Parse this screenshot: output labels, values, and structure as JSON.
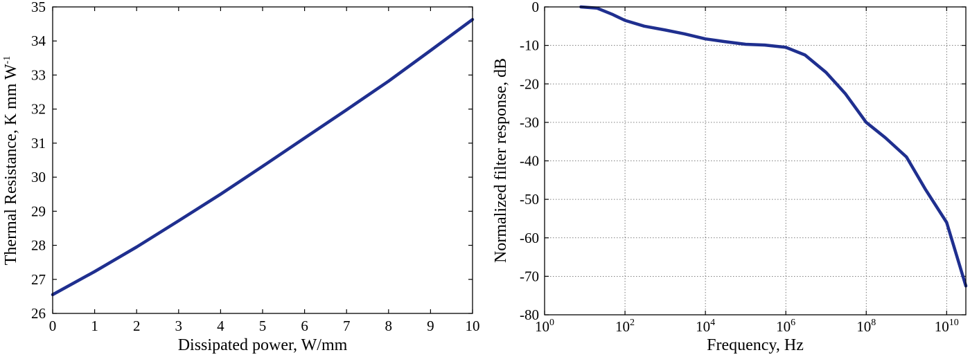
{
  "colors": {
    "line": "#1f2f8f",
    "axis": "#000000",
    "grid": "#555555",
    "background": "#ffffff"
  },
  "chart_data": [
    {
      "type": "line",
      "title": "",
      "xlabel": "Dissipated power, W/mm",
      "ylabel": "Thermal Resistance, K mm W",
      "ylabel_superscript": "-1",
      "xlim": [
        0,
        10
      ],
      "ylim": [
        26,
        35
      ],
      "xscale": "linear",
      "grid": false,
      "xticks": [
        0,
        1,
        2,
        3,
        4,
        5,
        6,
        7,
        8,
        9,
        10
      ],
      "yticks": [
        26,
        27,
        28,
        29,
        30,
        31,
        32,
        33,
        34,
        35
      ],
      "series": [
        {
          "x": [
            0,
            1,
            2,
            3,
            4,
            5,
            6,
            7,
            8,
            9,
            10
          ],
          "y": [
            26.55,
            27.23,
            27.95,
            28.72,
            29.5,
            30.32,
            31.15,
            31.98,
            32.82,
            33.72,
            34.63
          ]
        }
      ]
    },
    {
      "type": "line",
      "title": "",
      "xlabel": "Frequency, Hz",
      "ylabel": "Normalized filter response, dB",
      "xlim": [
        1,
        30000000000
      ],
      "ylim": [
        -80,
        0
      ],
      "xscale": "log",
      "grid": true,
      "xtick_labels": [
        {
          "value": 1,
          "base": "10",
          "exp": "0"
        },
        {
          "value": 100,
          "base": "10",
          "exp": "2"
        },
        {
          "value": 10000,
          "base": "10",
          "exp": "4"
        },
        {
          "value": 1000000,
          "base": "10",
          "exp": "6"
        },
        {
          "value": 100000000,
          "base": "10",
          "exp": "8"
        },
        {
          "value": 10000000000,
          "base": "10",
          "exp": "10"
        }
      ],
      "yticks": [
        0,
        -10,
        -20,
        -30,
        -40,
        -50,
        -60,
        -70,
        -80
      ],
      "series": [
        {
          "x": [
            8,
            20,
            50,
            100,
            300,
            1000,
            3000,
            10000,
            30000,
            100000,
            300000,
            1000000,
            3000000,
            10000000,
            30000000,
            100000000,
            300000000,
            1000000000,
            3000000000,
            10000000000,
            30000000000
          ],
          "y": [
            0,
            -0.3,
            -2,
            -3.5,
            -5,
            -6,
            -7,
            -8.3,
            -9,
            -9.7,
            -9.9,
            -10.5,
            -12.5,
            -17,
            -22.5,
            -30,
            -34,
            -39,
            -47.5,
            -56,
            -72.5
          ]
        }
      ]
    }
  ]
}
